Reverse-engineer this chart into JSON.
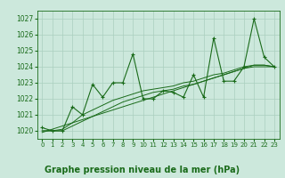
{
  "title": "Graphe pression niveau de la mer (hPa)",
  "x_labels": [
    "0",
    "1",
    "2",
    "3",
    "4",
    "5",
    "6",
    "7",
    "8",
    "9",
    "10",
    "11",
    "12",
    "13",
    "14",
    "15",
    "16",
    "17",
    "18",
    "19",
    "20",
    "21",
    "22",
    "23"
  ],
  "y_values": [
    1020.2,
    1020.0,
    1020.0,
    1021.5,
    1021.0,
    1022.9,
    1022.1,
    1023.0,
    1023.0,
    1024.8,
    1022.0,
    1022.0,
    1022.5,
    1022.4,
    1022.1,
    1023.5,
    1022.1,
    1025.8,
    1023.1,
    1023.1,
    1024.0,
    1027.0,
    1024.6,
    1024.0
  ],
  "smooth1": [
    1020.0,
    1020.0,
    1020.1,
    1020.5,
    1021.0,
    1021.3,
    1021.6,
    1021.9,
    1022.1,
    1022.3,
    1022.5,
    1022.6,
    1022.7,
    1022.8,
    1023.0,
    1023.1,
    1023.3,
    1023.5,
    1023.6,
    1023.8,
    1024.0,
    1024.1,
    1024.1,
    1024.0
  ],
  "smooth2": [
    1020.0,
    1020.0,
    1020.0,
    1020.3,
    1020.6,
    1020.9,
    1021.2,
    1021.5,
    1021.8,
    1022.0,
    1022.2,
    1022.4,
    1022.5,
    1022.6,
    1022.8,
    1022.9,
    1023.1,
    1023.3,
    1023.5,
    1023.7,
    1023.9,
    1024.0,
    1024.0,
    1024.0
  ],
  "trend": [
    1019.9,
    1020.1,
    1020.3,
    1020.5,
    1020.7,
    1020.9,
    1021.1,
    1021.3,
    1021.5,
    1021.7,
    1021.9,
    1022.1,
    1022.3,
    1022.5,
    1022.7,
    1022.9,
    1023.1,
    1023.3,
    1023.5,
    1023.7,
    1023.9,
    1024.1,
    1024.1,
    1024.0
  ],
  "ylim": [
    1019.5,
    1027.5
  ],
  "yticks": [
    1020,
    1021,
    1022,
    1023,
    1024,
    1025,
    1026,
    1027
  ],
  "data_color": "#1a6b1a",
  "bg_color": "#cce8dc",
  "grid_color": "#aacfbf",
  "title_fontsize": 7.0,
  "marker": "+"
}
